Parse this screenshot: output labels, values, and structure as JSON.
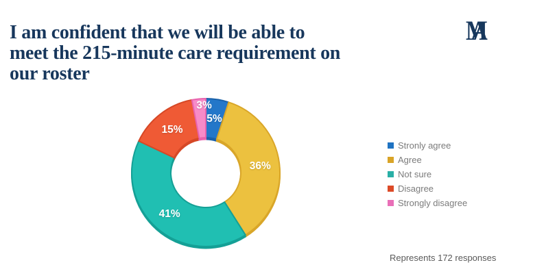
{
  "title": {
    "lines": [
      "I am confident that we will be able to",
      "meet the 215-minute care requirement on",
      "our roster"
    ],
    "color": "#17375C"
  },
  "logo": {
    "letters": [
      "M",
      "A"
    ],
    "color": "#17375C"
  },
  "footnote": "Represents 172 responses",
  "chart_data": {
    "type": "pie",
    "subtype": "donut",
    "title": "I am confident that we will be able to meet the 215-minute care requirement on our roster",
    "series": [
      {
        "label": "Stronly agree",
        "value": 5,
        "color": "#2377C9",
        "shade": "#1A61A9",
        "legend_color": "#1F73C2"
      },
      {
        "label": "Agree",
        "value": 36,
        "color": "#ECC13F",
        "shade": "#D9A629",
        "legend_color": "#D9A427"
      },
      {
        "label": "Not sure",
        "value": 41,
        "color": "#20BFB2",
        "shade": "#15A096",
        "legend_color": "#29AFA6"
      },
      {
        "label": "Disagree",
        "value": 15,
        "color": "#EF5A35",
        "shade": "#D64826",
        "legend_color": "#DC4A27"
      },
      {
        "label": "Strongly disagree",
        "value": 3,
        "color": "#F78BC8",
        "shade": "#E863AE",
        "legend_color": "#E96FB8"
      }
    ],
    "value_suffix": "%",
    "start_angle_deg": 0,
    "direction": "clockwise",
    "legend_position": "right",
    "labels_inside": true,
    "label_color": "#ffffff"
  }
}
